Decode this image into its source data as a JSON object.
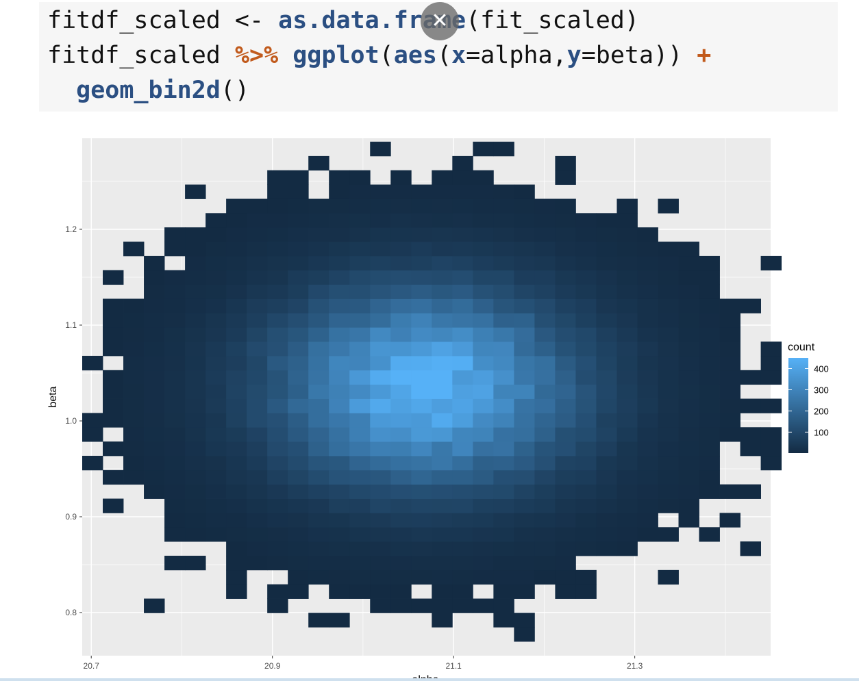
{
  "code": {
    "lines": [
      [
        {
          "t": "fitdf_scaled <- ",
          "c": "plain"
        },
        {
          "t": "as.data.frame",
          "c": "fn"
        },
        {
          "t": "(fit_scaled)",
          "c": "plain"
        }
      ],
      [
        {
          "t": "fitdf_scaled ",
          "c": "plain"
        },
        {
          "t": "%>%",
          "c": "op"
        },
        {
          "t": " ",
          "c": "plain"
        },
        {
          "t": "ggplot",
          "c": "fn"
        },
        {
          "t": "(",
          "c": "plain"
        },
        {
          "t": "aes",
          "c": "fn"
        },
        {
          "t": "(",
          "c": "plain"
        },
        {
          "t": "x",
          "c": "fn"
        },
        {
          "t": "=alpha,",
          "c": "plain"
        },
        {
          "t": "y",
          "c": "fn"
        },
        {
          "t": "=beta)) ",
          "c": "plain"
        },
        {
          "t": "+",
          "c": "op"
        }
      ],
      [
        {
          "t": "  ",
          "c": "plain"
        },
        {
          "t": "geom_bin2d",
          "c": "fn"
        },
        {
          "t": "()",
          "c": "plain"
        }
      ]
    ]
  },
  "overlay": {
    "close_icon": "close-icon",
    "close_glyph": "✕"
  },
  "chart_data": {
    "type": "heatmap",
    "xlabel": "alpha",
    "ylabel": "beta",
    "xlim": [
      20.69,
      21.45
    ],
    "ylim": [
      0.755,
      1.295
    ],
    "xticks": [
      20.7,
      20.9,
      21.1,
      21.3
    ],
    "xtick_labels": [
      "20.7",
      "20.9",
      "21.1",
      "21.3"
    ],
    "yticks": [
      0.8,
      0.9,
      1.0,
      1.1,
      1.2
    ],
    "ytick_labels": [
      "0.8",
      "0.9",
      "1.0",
      "1.1",
      "1.2"
    ],
    "grid": true,
    "panel_background": "#ebebeb",
    "legend": {
      "title": "count",
      "position": "right",
      "ticks": [
        100,
        200,
        300,
        400
      ],
      "tick_labels": [
        "100",
        "200",
        "300",
        "400"
      ],
      "range": [
        1,
        450
      ],
      "low_color": "#132b43",
      "high_color": "#56b1f7"
    },
    "binning": {
      "x_center": 21.07,
      "x_sigma": 0.112,
      "x_binwidth": 0.0227,
      "y_center": 1.035,
      "y_sigma": 0.069,
      "y_binwidth": 0.0149,
      "peak_count": 450
    }
  }
}
